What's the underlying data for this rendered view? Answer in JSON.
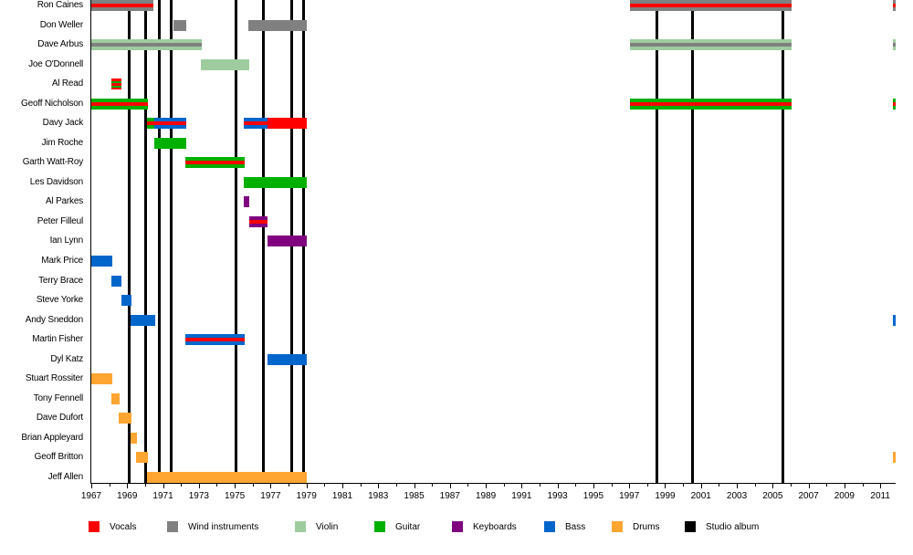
{
  "chart_data": {
    "type": "timeline",
    "xlim": [
      1967,
      2011.85
    ],
    "x_ticks": [
      1967,
      1969,
      1971,
      1973,
      1975,
      1977,
      1979,
      1981,
      1983,
      1985,
      1987,
      1989,
      1991,
      1993,
      1995,
      1997,
      1999,
      2001,
      2003,
      2005,
      2007,
      2009,
      2011
    ],
    "roles": {
      "vocals": {
        "label": "Vocals",
        "color": "#ff0000"
      },
      "wind": {
        "label": "Wind instruments",
        "color": "#808080"
      },
      "violin": {
        "label": "Violin",
        "color": "#9fcc9f"
      },
      "guitar": {
        "label": "Guitar",
        "color": "#00b000"
      },
      "keyboards": {
        "label": "Keyboards",
        "color": "#800080"
      },
      "bass": {
        "label": "Bass",
        "color": "#0066cc"
      },
      "drums": {
        "label": "Drums",
        "color": "#ffa531"
      },
      "album": {
        "label": "Studio album",
        "color": "#000000"
      }
    },
    "legend_order": [
      "vocals",
      "wind",
      "violin",
      "guitar",
      "keyboards",
      "bass",
      "drums",
      "album"
    ],
    "members": [
      {
        "name": "Ron Caines",
        "periods": [
          [
            1967,
            1970.45,
            [
              "wind",
              "vocals"
            ]
          ],
          [
            1997.05,
            2006.05,
            [
              "wind",
              "vocals"
            ]
          ],
          [
            2011.7,
            2011.85,
            [
              "wind",
              "vocals"
            ]
          ]
        ]
      },
      {
        "name": "Don Weller",
        "periods": [
          [
            1971.58,
            1972.3,
            [
              "wind"
            ]
          ],
          [
            1975.76,
            1979,
            [
              "wind"
            ]
          ]
        ]
      },
      {
        "name": "Dave Arbus",
        "periods": [
          [
            1967,
            1973.16,
            [
              "violin",
              "wind"
            ]
          ],
          [
            1997.05,
            2006.05,
            [
              "violin",
              "wind"
            ]
          ],
          [
            2011.7,
            2011.85,
            [
              "violin",
              "wind"
            ]
          ]
        ]
      },
      {
        "name": "Joe O'Donnell",
        "periods": [
          [
            1973.1,
            1975.8,
            [
              "violin"
            ]
          ]
        ]
      },
      {
        "name": "Al Read",
        "periods": [
          [
            1968.1,
            1968.7,
            [
              "vocals",
              "guitar",
              "vocals"
            ]
          ]
        ]
      },
      {
        "name": "Geoff Nicholson",
        "periods": [
          [
            1967,
            1970.14,
            [
              "guitar",
              "vocals"
            ]
          ],
          [
            1997.05,
            2006.05,
            [
              "guitar",
              "vocals"
            ]
          ],
          [
            2011.7,
            2011.85,
            [
              "guitar",
              "vocals"
            ]
          ]
        ]
      },
      {
        "name": "Davy Jack",
        "periods": [
          [
            1970.1,
            1970.5,
            [
              "guitar",
              "vocals"
            ]
          ],
          [
            1970.5,
            1972.3,
            [
              "bass",
              "vocals"
            ]
          ],
          [
            1975.5,
            1976.83,
            [
              "bass",
              "vocals"
            ]
          ],
          [
            1976.83,
            1979,
            [
              "vocals"
            ]
          ]
        ]
      },
      {
        "name": "Jim Roche",
        "periods": [
          [
            1970.5,
            1972.3,
            [
              "guitar"
            ]
          ]
        ]
      },
      {
        "name": "Garth Watt-Roy",
        "periods": [
          [
            1972.26,
            1975.54,
            [
              "guitar",
              "vocals"
            ]
          ]
        ]
      },
      {
        "name": "Les Davidson",
        "periods": [
          [
            1975.5,
            1979,
            [
              "guitar"
            ]
          ]
        ]
      },
      {
        "name": "Al Parkes",
        "periods": [
          [
            1975.5,
            1975.8,
            [
              "keyboards"
            ]
          ]
        ]
      },
      {
        "name": "Peter Filleul",
        "periods": [
          [
            1975.8,
            1976.85,
            [
              "keyboards",
              "vocals"
            ]
          ]
        ]
      },
      {
        "name": "Ian Lynn",
        "periods": [
          [
            1976.83,
            1979,
            [
              "keyboards"
            ]
          ]
        ]
      },
      {
        "name": "Mark Price",
        "periods": [
          [
            1967,
            1968.17,
            [
              "bass"
            ]
          ]
        ]
      },
      {
        "name": "Terry Brace",
        "periods": [
          [
            1968.1,
            1968.7,
            [
              "bass"
            ]
          ]
        ]
      },
      {
        "name": "Steve Yorke",
        "periods": [
          [
            1968.68,
            1969.24,
            [
              "bass"
            ]
          ]
        ]
      },
      {
        "name": "Andy Sneddon",
        "periods": [
          [
            1969.2,
            1970.56,
            [
              "bass"
            ]
          ],
          [
            2011.7,
            2011.85,
            [
              "bass"
            ]
          ]
        ]
      },
      {
        "name": "Martin Fisher",
        "periods": [
          [
            1972.26,
            1975.54,
            [
              "bass",
              "vocals"
            ]
          ]
        ]
      },
      {
        "name": "Dyl Katz",
        "periods": [
          [
            1976.83,
            1979,
            [
              "bass"
            ]
          ]
        ]
      },
      {
        "name": "Stuart Rossiter",
        "periods": [
          [
            1967,
            1968.17,
            [
              "drums"
            ]
          ]
        ]
      },
      {
        "name": "Tony Fennell",
        "periods": [
          [
            1968.1,
            1968.56,
            [
              "drums"
            ]
          ]
        ]
      },
      {
        "name": "Dave Dufort",
        "periods": [
          [
            1968.53,
            1969.24,
            [
              "drums"
            ]
          ]
        ]
      },
      {
        "name": "Brian Appleyard",
        "periods": [
          [
            1969.2,
            1969.55,
            [
              "drums"
            ]
          ]
        ]
      },
      {
        "name": "Geoff Britton",
        "periods": [
          [
            1969.5,
            1970.16,
            [
              "drums"
            ]
          ],
          [
            2011.7,
            2011.85,
            [
              "drums"
            ]
          ]
        ]
      },
      {
        "name": "Jeff Allen",
        "periods": [
          [
            1970.1,
            1979,
            [
              "drums"
            ]
          ]
        ]
      }
    ],
    "studio_albums": [
      1969.12,
      1970.02,
      1970.78,
      1971.45,
      1975.06,
      1976.6,
      1978.18,
      1978.83,
      1998.53,
      2000.51,
      2005.55
    ]
  }
}
